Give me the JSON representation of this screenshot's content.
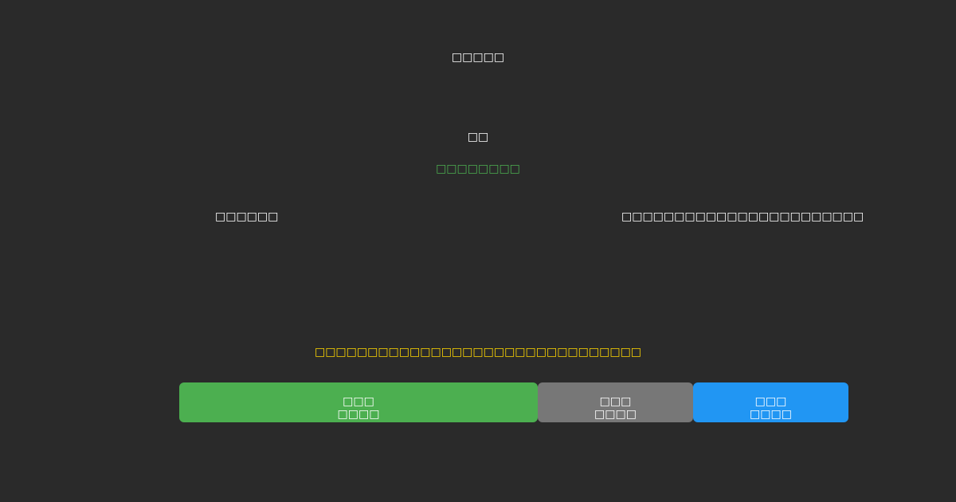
{
  "title": "□□□□□",
  "subtitle": "□□",
  "status_text": "□□□□□□□□",
  "left_label": "□□□□□□",
  "right_value": "□□□□□□□□□□□□□□□□□□□□□□□",
  "warning_text": "□□□□□□□□□□□□□□□□□□□□□□□□□□□□□□□",
  "buttons": [
    {
      "line1": "□□□",
      "line2": "□□□□",
      "color": "#4caf50"
    },
    {
      "line1": "□□□",
      "line2": "□□□□",
      "color": "#777777"
    },
    {
      "line1": "□□□",
      "line2": "□□□□",
      "color": "#2196f3"
    }
  ],
  "colors": {
    "background": "#2a2a2a",
    "status": "#4caf50",
    "warning": "#ffd700"
  }
}
